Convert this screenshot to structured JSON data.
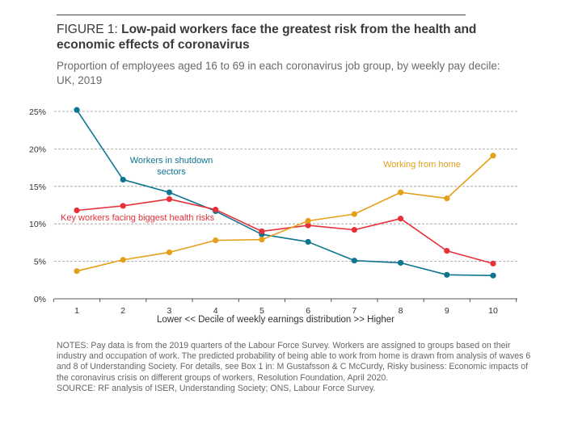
{
  "header": {
    "figure_label": "FIGURE 1:",
    "title": "Low-paid workers face the greatest risk from the health and economic effects of coronavirus",
    "subtitle": "Proportion of employees aged 16 to 69 in each coronavirus job group, by weekly pay decile: UK, 2019"
  },
  "chart_data": {
    "type": "line",
    "title": "",
    "xlabel": "Lower << Decile of weekly earnings distribution >> Higher",
    "ylabel": "",
    "x": [
      1,
      2,
      3,
      4,
      5,
      6,
      7,
      8,
      9,
      10
    ],
    "x_tick_labels": [
      "1",
      "2",
      "3",
      "4",
      "5",
      "6",
      "7",
      "8",
      "9",
      "10"
    ],
    "ylim": [
      0,
      25
    ],
    "y_ticks": [
      0,
      5,
      10,
      15,
      20,
      25
    ],
    "y_tick_labels": [
      "0%",
      "5%",
      "10%",
      "15%",
      "20%",
      "25%"
    ],
    "grid": "horizontal dashed",
    "series": [
      {
        "name": "Workers in shutdown sectors",
        "label_lines": [
          "Workers in shutdown",
          "sectors"
        ],
        "color": "#0e7490",
        "values": [
          25.2,
          15.9,
          14.2,
          11.7,
          8.6,
          7.6,
          5.1,
          4.8,
          3.2,
          3.1
        ]
      },
      {
        "name": "Key workers facing biggest health risks",
        "label_lines": [
          "Key workers facing biggest health risks"
        ],
        "color": "#e8303a",
        "values": [
          11.8,
          12.4,
          13.3,
          11.9,
          9.0,
          9.8,
          9.2,
          10.7,
          6.4,
          4.7
        ]
      },
      {
        "name": "Working from home",
        "label_lines": [
          "Working from home"
        ],
        "color": "#e5a01b",
        "values": [
          3.7,
          5.2,
          6.2,
          7.8,
          7.9,
          10.4,
          11.3,
          14.2,
          13.4,
          19.1
        ]
      }
    ]
  },
  "notes": {
    "text": "NOTES: Pay data is from the 2019 quarters of the Labour Force Survey. Workers are assigned to groups based on their industry and occupation of work. The predicted probability of being able to work from home is drawn from analysis of waves 6 and 8 of Understanding Society. For details, see Box 1 in: M Gustafsson & C McCurdy, Risky business: Economic impacts of the coronavirus crisis on different groups of workers, Resolution Foundation, April 2020.",
    "source": "SOURCE: RF analysis of ISER, Understanding Society; ONS, Labour Force Survey."
  }
}
